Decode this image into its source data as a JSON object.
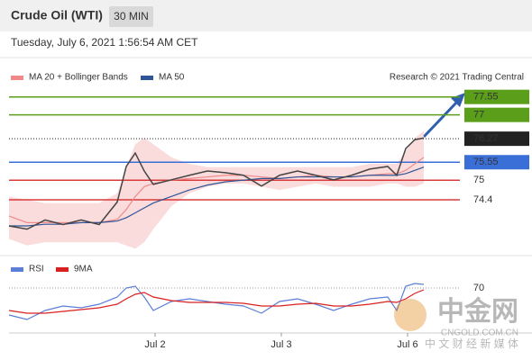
{
  "header": {
    "title": "Crude Oil (WTI)",
    "timeframe": "30 MIN",
    "date": "Tuesday, July 6, 2021 1:56:54 AM CET",
    "credit": "Research © 2021 Trading Central"
  },
  "watermark": {
    "name": "中金网",
    "site": "CNGOLD.COM.CN",
    "slogan": "中 文 财 经 新 媒 体"
  },
  "chart_data": [
    {
      "type": "line",
      "xlim": [
        0,
        100
      ],
      "ylim": [
        72.8,
        77.9
      ],
      "x": [
        0,
        4,
        8,
        12,
        16,
        20,
        24,
        26,
        28,
        30,
        32,
        36,
        40,
        44,
        48,
        52,
        56,
        60,
        64,
        68,
        72,
        76,
        80,
        84,
        86,
        88,
        90,
        92
      ],
      "values": [
        73.6,
        73.5,
        73.78,
        73.64,
        73.78,
        73.64,
        74.33,
        75.42,
        75.83,
        75.28,
        74.87,
        75.01,
        75.15,
        75.28,
        75.23,
        75.15,
        74.82,
        75.15,
        75.28,
        75.15,
        75.01,
        75.15,
        75.34,
        75.42,
        75.15,
        75.97,
        76.24,
        76.29
      ],
      "color": "#444444",
      "bands": {
        "color": "#f9d3d3",
        "upper": [
          74.5,
          74.4,
          74.3,
          74.3,
          74.3,
          74.3,
          74.6,
          75.4,
          76.1,
          76.3,
          76.1,
          75.7,
          75.5,
          75.4,
          75.4,
          75.4,
          75.4,
          75.4,
          75.4,
          75.4,
          75.4,
          75.4,
          75.5,
          75.5,
          75.5,
          75.9,
          76.3,
          76.5
        ],
        "lower": [
          73.2,
          73.0,
          73.1,
          73.1,
          73.1,
          73.1,
          73.1,
          73.0,
          72.9,
          73.1,
          73.5,
          74.2,
          74.6,
          74.8,
          74.9,
          74.9,
          74.8,
          74.7,
          74.8,
          74.9,
          74.8,
          74.8,
          74.8,
          74.9,
          74.9,
          74.8,
          74.8,
          74.9
        ]
      },
      "series": [
        {
          "name": "MA 20 + Bollinger Bands",
          "color": "#f08a8a",
          "values": [
            73.9,
            73.7,
            73.7,
            73.7,
            73.7,
            73.7,
            73.8,
            74.1,
            74.5,
            74.8,
            74.9,
            75.0,
            75.05,
            75.1,
            75.15,
            75.15,
            75.1,
            75.05,
            75.1,
            75.15,
            75.1,
            75.1,
            75.15,
            75.2,
            75.2,
            75.3,
            75.5,
            75.7
          ]
        },
        {
          "name": "MA 50",
          "color": "#2f5597",
          "values": [
            73.6,
            73.6,
            73.65,
            73.65,
            73.7,
            73.7,
            73.75,
            73.85,
            74.0,
            74.15,
            74.3,
            74.5,
            74.7,
            74.85,
            74.95,
            75.0,
            75.05,
            75.05,
            75.1,
            75.1,
            75.1,
            75.1,
            75.15,
            75.15,
            75.15,
            75.2,
            75.3,
            75.4
          ]
        }
      ],
      "levels": [
        {
          "value": 77.55,
          "color": "#5a9e1a",
          "line": "solid",
          "label": "box"
        },
        {
          "value": 77.0,
          "color": "#5a9e1a",
          "line": "solid",
          "label": "box"
        },
        {
          "value": 76.27,
          "color": "#222222",
          "line": "dotted",
          "label": "box"
        },
        {
          "value": 75.55,
          "color": "#3a6fd8",
          "line": "solid",
          "label": "box"
        },
        {
          "value": 75.0,
          "color": "#d93a3a",
          "line": "solid",
          "label": "text"
        },
        {
          "value": 74.4,
          "color": "#d93a3a",
          "line": "solid",
          "label": "text"
        }
      ]
    },
    {
      "type": "line",
      "xlim": [
        0,
        100
      ],
      "ylim": [
        20,
        80
      ],
      "yticks": [
        70
      ],
      "x": [
        0,
        4,
        8,
        12,
        16,
        20,
        24,
        26,
        28,
        30,
        32,
        36,
        40,
        44,
        48,
        52,
        56,
        60,
        64,
        68,
        72,
        76,
        80,
        84,
        86,
        88,
        90,
        92
      ],
      "xticks": [
        {
          "value": 32.4,
          "label": "Jul 2"
        },
        {
          "value": 60.4,
          "label": "Jul 3"
        },
        {
          "value": 88.4,
          "label": "Jul 6"
        }
      ],
      "series": [
        {
          "name": "RSI",
          "color": "#5b7fd6",
          "values": [
            40,
            35,
            45,
            50,
            48,
            52,
            60,
            70,
            72,
            60,
            45,
            55,
            58,
            55,
            52,
            50,
            42,
            55,
            58,
            52,
            45,
            52,
            58,
            60,
            45,
            72,
            75,
            74
          ]
        },
        {
          "name": "9MA",
          "color": "#d92020",
          "values": [
            45,
            42,
            42,
            44,
            46,
            48,
            52,
            58,
            63,
            65,
            60,
            56,
            54,
            54,
            54,
            53,
            50,
            50,
            52,
            53,
            50,
            50,
            52,
            55,
            54,
            58,
            64,
            68
          ]
        }
      ]
    }
  ]
}
